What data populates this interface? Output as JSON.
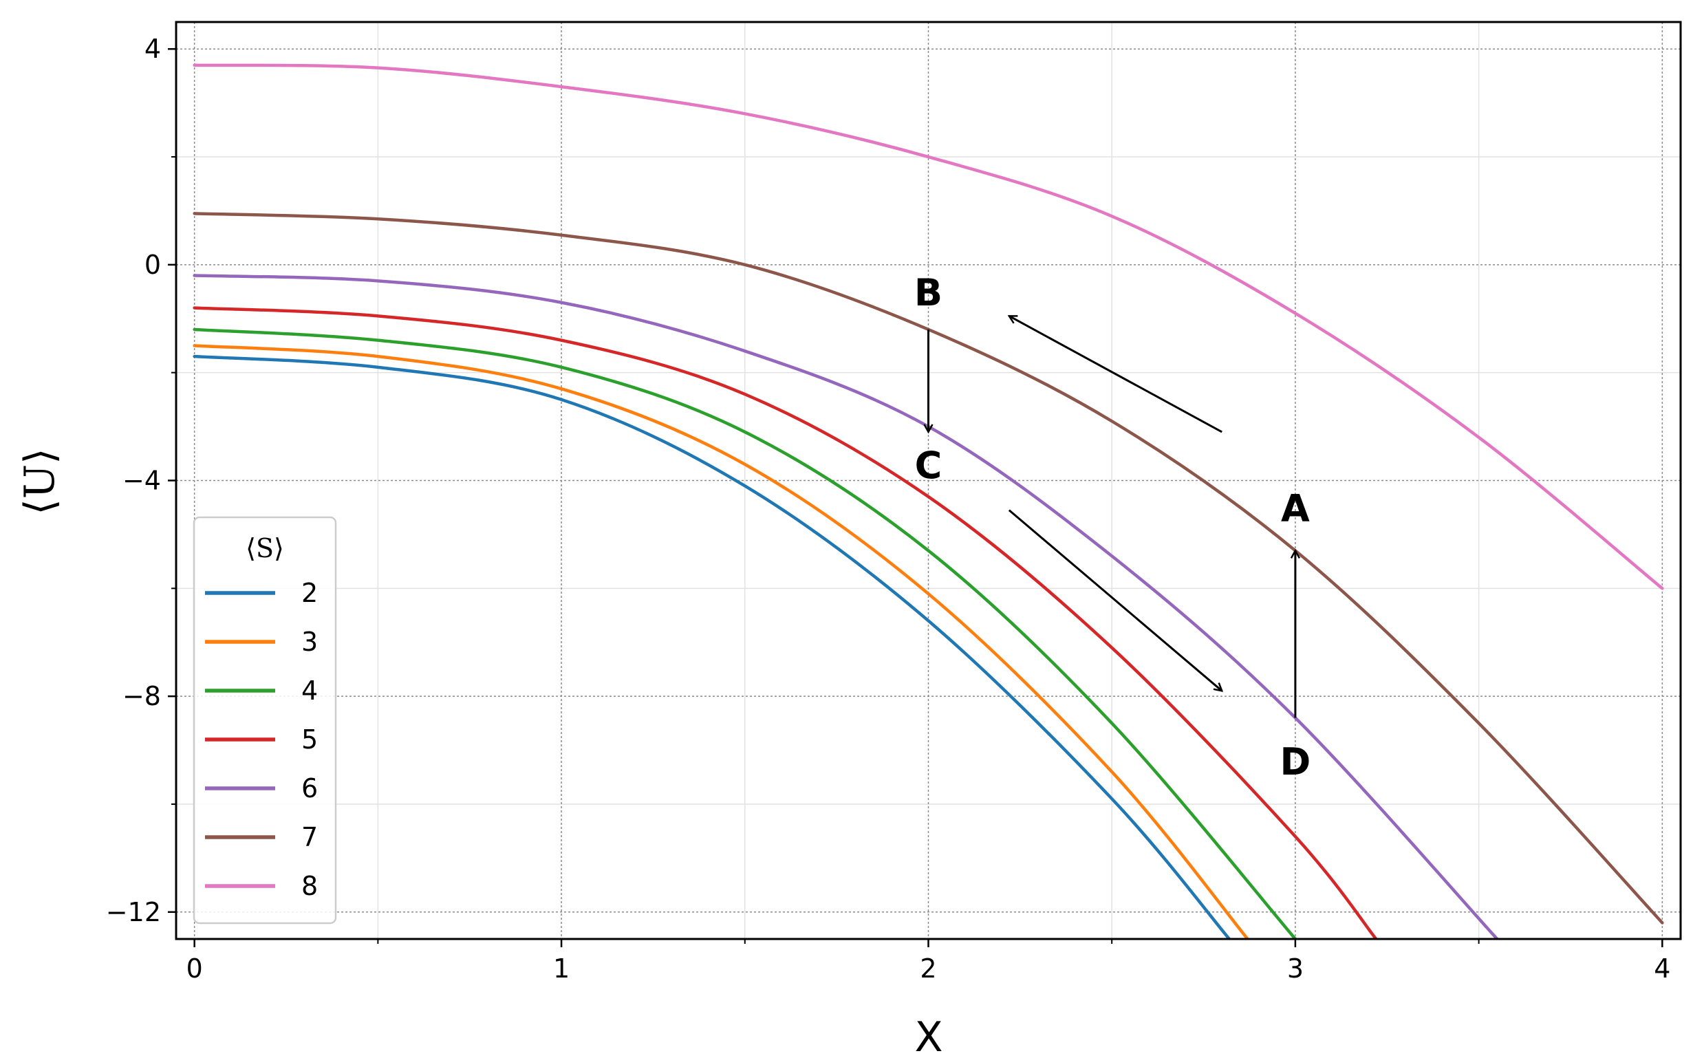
{
  "chart_data": {
    "type": "line",
    "xlabel": "X",
    "ylabel": "⟨U⟩",
    "xlim": [
      -0.05,
      4.05
    ],
    "ylim": [
      -12.5,
      4.5
    ],
    "xticks": [
      0,
      1,
      2,
      3,
      4
    ],
    "yticks": [
      4,
      0,
      -4,
      -8,
      -12
    ],
    "ytick_labels": [
      "4",
      "0",
      "−4",
      "−8",
      "−12"
    ],
    "grid": true,
    "legend": {
      "title": "⟨S⟩",
      "placement": "lower-left"
    },
    "series": [
      {
        "name": "2",
        "color": "#1f77b4",
        "x": [
          0,
          0.5,
          1,
          1.5,
          2,
          2.5,
          2.82
        ],
        "y": [
          -1.7,
          -1.9,
          -2.5,
          -4.1,
          -6.6,
          -9.9,
          -12.5
        ]
      },
      {
        "name": "3",
        "color": "#ff7f0e",
        "x": [
          0,
          0.5,
          1,
          1.5,
          2,
          2.5,
          2.87
        ],
        "y": [
          -1.5,
          -1.7,
          -2.3,
          -3.7,
          -6.1,
          -9.4,
          -12.5
        ]
      },
      {
        "name": "4",
        "color": "#2ca02c",
        "x": [
          0,
          0.5,
          1,
          1.5,
          2,
          2.5,
          3.0
        ],
        "y": [
          -1.2,
          -1.4,
          -1.9,
          -3.1,
          -5.3,
          -8.5,
          -12.5
        ]
      },
      {
        "name": "5",
        "color": "#d62728",
        "x": [
          0,
          0.5,
          1,
          1.5,
          2,
          2.5,
          3.0,
          3.22
        ],
        "y": [
          -0.8,
          -0.95,
          -1.4,
          -2.4,
          -4.3,
          -7.1,
          -10.6,
          -12.5
        ]
      },
      {
        "name": "6",
        "color": "#9467bd",
        "x": [
          0,
          0.5,
          1,
          1.5,
          2,
          2.5,
          3.0,
          3.55
        ],
        "y": [
          -0.2,
          -0.3,
          -0.7,
          -1.6,
          -3.0,
          -5.4,
          -8.4,
          -12.5
        ]
      },
      {
        "name": "7",
        "color": "#8c564b",
        "x": [
          0,
          0.5,
          1,
          1.5,
          2,
          2.5,
          3.0,
          3.5,
          4.0
        ],
        "y": [
          0.95,
          0.85,
          0.55,
          0.0,
          -1.2,
          -2.9,
          -5.3,
          -8.5,
          -12.2
        ]
      },
      {
        "name": "8",
        "color": "#e377c2",
        "x": [
          0,
          0.5,
          1,
          1.5,
          2,
          2.5,
          3.0,
          3.5,
          4.0
        ],
        "y": [
          3.7,
          3.65,
          3.3,
          2.8,
          2.0,
          0.9,
          -0.9,
          -3.2,
          -6.0
        ]
      }
    ],
    "annotations": [
      {
        "text": "B",
        "x": 2.0,
        "y": -0.5
      },
      {
        "text": "C",
        "x": 2.0,
        "y": -3.7
      },
      {
        "text": "A",
        "x": 3.0,
        "y": -4.5
      },
      {
        "text": "D",
        "x": 3.0,
        "y": -9.2
      }
    ],
    "arrows": [
      {
        "from": [
          2.0,
          -1.2
        ],
        "to": [
          2.0,
          -3.1
        ]
      },
      {
        "from": [
          3.0,
          -8.4
        ],
        "to": [
          3.0,
          -5.3
        ]
      },
      {
        "from": [
          2.8,
          -3.1
        ],
        "to": [
          2.22,
          -0.95
        ]
      },
      {
        "from": [
          2.22,
          -4.55
        ],
        "to": [
          2.8,
          -7.9
        ]
      }
    ]
  }
}
